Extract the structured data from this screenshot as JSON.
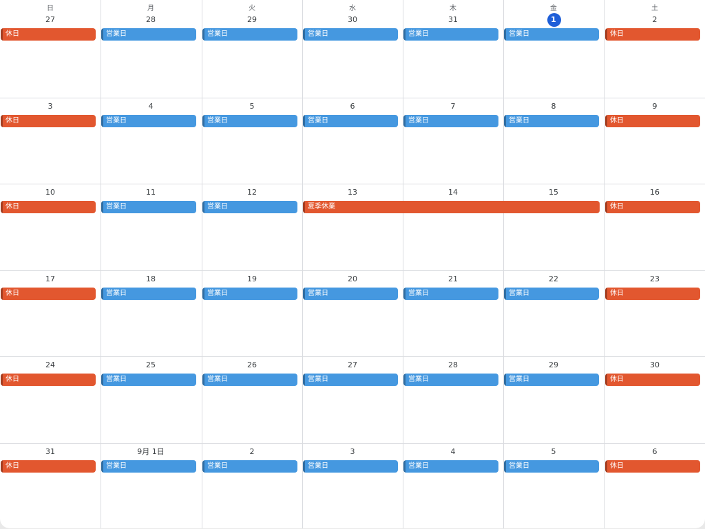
{
  "calendar": {
    "weekday_headers": [
      "日",
      "月",
      "火",
      "水",
      "木",
      "金",
      "土"
    ],
    "today_label": "1",
    "colors": {
      "holiday": "#e2572f",
      "workday": "#4598e0",
      "today": "#1f5fd8",
      "grid": "#dadce0"
    },
    "weeks": [
      {
        "days": [
          "27",
          "28",
          "29",
          "30",
          "31",
          "1",
          "2"
        ],
        "events": [
          {
            "label": "休日",
            "type": "holiday",
            "start": 0,
            "span": 1
          },
          {
            "label": "営業日",
            "type": "workday",
            "start": 1,
            "span": 1
          },
          {
            "label": "営業日",
            "type": "workday",
            "start": 2,
            "span": 1
          },
          {
            "label": "営業日",
            "type": "workday",
            "start": 3,
            "span": 1
          },
          {
            "label": "営業日",
            "type": "workday",
            "start": 4,
            "span": 1
          },
          {
            "label": "営業日",
            "type": "workday",
            "start": 5,
            "span": 1
          },
          {
            "label": "休日",
            "type": "holiday",
            "start": 6,
            "span": 1
          }
        ]
      },
      {
        "days": [
          "3",
          "4",
          "5",
          "6",
          "7",
          "8",
          "9"
        ],
        "events": [
          {
            "label": "休日",
            "type": "holiday",
            "start": 0,
            "span": 1
          },
          {
            "label": "営業日",
            "type": "workday",
            "start": 1,
            "span": 1
          },
          {
            "label": "営業日",
            "type": "workday",
            "start": 2,
            "span": 1
          },
          {
            "label": "営業日",
            "type": "workday",
            "start": 3,
            "span": 1
          },
          {
            "label": "営業日",
            "type": "workday",
            "start": 4,
            "span": 1
          },
          {
            "label": "営業日",
            "type": "workday",
            "start": 5,
            "span": 1
          },
          {
            "label": "休日",
            "type": "holiday",
            "start": 6,
            "span": 1
          }
        ]
      },
      {
        "days": [
          "10",
          "11",
          "12",
          "13",
          "14",
          "15",
          "16"
        ],
        "events": [
          {
            "label": "休日",
            "type": "holiday",
            "start": 0,
            "span": 1
          },
          {
            "label": "営業日",
            "type": "workday",
            "start": 1,
            "span": 1
          },
          {
            "label": "営業日",
            "type": "workday",
            "start": 2,
            "span": 1
          },
          {
            "label": "夏季休業",
            "type": "holiday",
            "start": 3,
            "span": 3
          },
          {
            "label": "休日",
            "type": "holiday",
            "start": 6,
            "span": 1
          }
        ]
      },
      {
        "days": [
          "17",
          "18",
          "19",
          "20",
          "21",
          "22",
          "23"
        ],
        "events": [
          {
            "label": "休日",
            "type": "holiday",
            "start": 0,
            "span": 1
          },
          {
            "label": "営業日",
            "type": "workday",
            "start": 1,
            "span": 1
          },
          {
            "label": "営業日",
            "type": "workday",
            "start": 2,
            "span": 1
          },
          {
            "label": "営業日",
            "type": "workday",
            "start": 3,
            "span": 1
          },
          {
            "label": "営業日",
            "type": "workday",
            "start": 4,
            "span": 1
          },
          {
            "label": "営業日",
            "type": "workday",
            "start": 5,
            "span": 1
          },
          {
            "label": "休日",
            "type": "holiday",
            "start": 6,
            "span": 1
          }
        ]
      },
      {
        "days": [
          "24",
          "25",
          "26",
          "27",
          "28",
          "29",
          "30"
        ],
        "events": [
          {
            "label": "休日",
            "type": "holiday",
            "start": 0,
            "span": 1
          },
          {
            "label": "営業日",
            "type": "workday",
            "start": 1,
            "span": 1
          },
          {
            "label": "営業日",
            "type": "workday",
            "start": 2,
            "span": 1
          },
          {
            "label": "営業日",
            "type": "workday",
            "start": 3,
            "span": 1
          },
          {
            "label": "営業日",
            "type": "workday",
            "start": 4,
            "span": 1
          },
          {
            "label": "営業日",
            "type": "workday",
            "start": 5,
            "span": 1
          },
          {
            "label": "休日",
            "type": "holiday",
            "start": 6,
            "span": 1
          }
        ]
      },
      {
        "days": [
          "31",
          "9月 1日",
          "2",
          "3",
          "4",
          "5",
          "6"
        ],
        "events": [
          {
            "label": "休日",
            "type": "holiday",
            "start": 0,
            "span": 1
          },
          {
            "label": "営業日",
            "type": "workday",
            "start": 1,
            "span": 1
          },
          {
            "label": "営業日",
            "type": "workday",
            "start": 2,
            "span": 1
          },
          {
            "label": "営業日",
            "type": "workday",
            "start": 3,
            "span": 1
          },
          {
            "label": "営業日",
            "type": "workday",
            "start": 4,
            "span": 1
          },
          {
            "label": "営業日",
            "type": "workday",
            "start": 5,
            "span": 1
          },
          {
            "label": "休日",
            "type": "holiday",
            "start": 6,
            "span": 1
          }
        ]
      }
    ]
  }
}
